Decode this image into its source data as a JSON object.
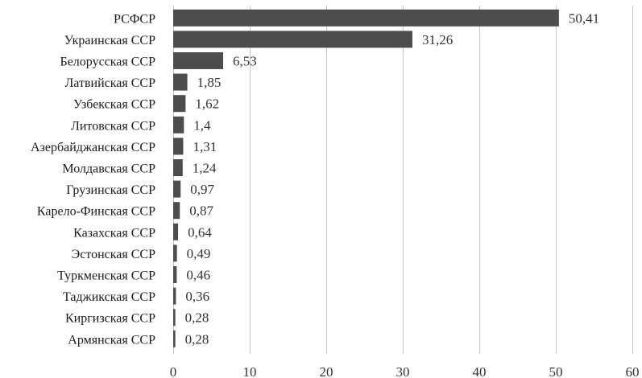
{
  "chart_data": {
    "type": "bar",
    "orientation": "horizontal",
    "categories": [
      "РСФСР",
      "Украинская ССР",
      "Белорусская ССР",
      "Латвийская ССР",
      "Узбекская ССР",
      "Литовская ССР",
      "Азербайджанская ССР",
      "Молдавская ССР",
      "Грузинская ССР",
      "Карело-Финская ССР",
      "Казахская ССР",
      "Эстонская ССР",
      "Туркменская ССР",
      "Таджикская ССР",
      "Киргизская ССР",
      "Армянская ССР"
    ],
    "values": [
      50.41,
      31.26,
      6.53,
      1.85,
      1.62,
      1.4,
      1.31,
      1.24,
      0.97,
      0.87,
      0.64,
      0.49,
      0.46,
      0.36,
      0.28,
      0.28
    ],
    "value_labels": [
      "50,41",
      "31,26",
      "6,53",
      "1,85",
      "1,62",
      "1,4",
      "1,31",
      "1,24",
      "0,97",
      "0,87",
      "0,64",
      "0,49",
      "0,46",
      "0,36",
      "0,28",
      "0,28"
    ],
    "xlim": [
      0,
      60
    ],
    "xticks": [
      0,
      10,
      20,
      30,
      40,
      50,
      60
    ],
    "xtick_labels": [
      "0",
      "10",
      "20",
      "30",
      "40",
      "50",
      "60"
    ],
    "grid": "vertical",
    "bar_color": "#4d4d4d",
    "title": "",
    "xlabel": "",
    "ylabel": ""
  }
}
